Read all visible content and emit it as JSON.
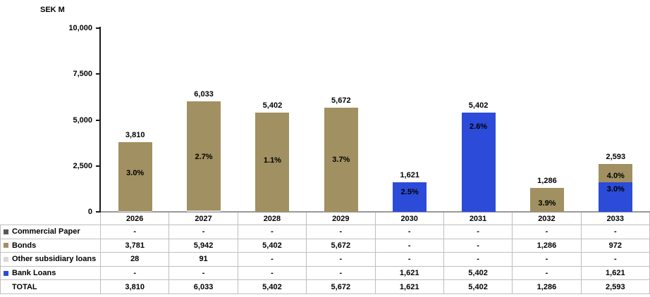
{
  "chart_data": {
    "type": "bar",
    "stacked": true,
    "title": "",
    "ylabel": "SEK M",
    "xlabel": "",
    "ylim": [
      0,
      10000
    ],
    "grid": false,
    "legend_position": "table-left",
    "yticks": [
      {
        "label": "0",
        "value": 0
      },
      {
        "label": "2,500",
        "value": 2500
      },
      {
        "label": "5,000",
        "value": 5000
      },
      {
        "label": "7,500",
        "value": 7500
      },
      {
        "label": "10,000",
        "value": 10000
      }
    ],
    "categories": [
      "2026",
      "2027",
      "2028",
      "2029",
      "2030",
      "2031",
      "2032",
      "2033"
    ],
    "series": [
      {
        "name": "Commercial Paper",
        "color": "#595959",
        "values": [
          0,
          0,
          0,
          0,
          0,
          0,
          0,
          0
        ]
      },
      {
        "name": "Bonds",
        "color": "#A19061",
        "values": [
          3781,
          5942,
          5402,
          5672,
          0,
          0,
          1286,
          972
        ]
      },
      {
        "name": "Other subsidiary loans",
        "color": "#D9D9D9",
        "values": [
          28,
          91,
          0,
          0,
          0,
          0,
          0,
          0
        ]
      },
      {
        "name": "Bank Loans",
        "color": "#2B4BD8",
        "values": [
          0,
          0,
          0,
          0,
          1621,
          5402,
          0,
          1621
        ]
      }
    ],
    "stack_order_bottom_to_top": [
      "Bank Loans",
      "Other subsidiary loans",
      "Bonds",
      "Commercial Paper"
    ],
    "totals": [
      3810,
      6033,
      5402,
      5672,
      1621,
      5402,
      1286,
      2593
    ],
    "total_labels": [
      "3,810",
      "6,033",
      "5,402",
      "5,672",
      "1,621",
      "5,402",
      "1,286",
      "2,593"
    ],
    "annotations": [
      [
        {
          "text": "3.0%",
          "at": 2100
        }
      ],
      [
        {
          "text": "2.7%",
          "at": 3000
        }
      ],
      [
        {
          "text": "1.1%",
          "at": 2790
        }
      ],
      [
        {
          "text": "3.7%",
          "at": 2820
        }
      ],
      [
        {
          "text": "2.5%",
          "at": 1070
        }
      ],
      [
        {
          "text": "2.6%",
          "at": 4650
        }
      ],
      [
        {
          "text": "3.9%",
          "at": 460
        }
      ],
      [
        {
          "text": "4.0%",
          "at": 1950
        },
        {
          "text": "3.0%",
          "at": 1220
        }
      ]
    ]
  },
  "table": {
    "columns": [
      "2026",
      "2027",
      "2028",
      "2029",
      "2030",
      "2031",
      "2032",
      "2033"
    ],
    "rows": [
      {
        "label": "Commercial Paper",
        "marker_color": "#595959",
        "values": [
          "-",
          "-",
          "-",
          "-",
          "-",
          "-",
          "-",
          "-"
        ]
      },
      {
        "label": "Bonds",
        "marker_color": "#A19061",
        "values": [
          "3,781",
          "5,942",
          "5,402",
          "5,672",
          "-",
          "-",
          "1,286",
          "972"
        ]
      },
      {
        "label": "Other subsidiary loans",
        "marker_color": "#D9D9D9",
        "values": [
          "28",
          "91",
          "-",
          "-",
          "-",
          "-",
          "-",
          "-"
        ]
      },
      {
        "label": "Bank Loans",
        "marker_color": "#2B4BD8",
        "values": [
          "-",
          "-",
          "-",
          "-",
          "1,621",
          "5,402",
          "-",
          "1,621"
        ]
      },
      {
        "label": "TOTAL",
        "marker_color": null,
        "values": [
          "3,810",
          "6,033",
          "5,402",
          "5,672",
          "1,621",
          "5,402",
          "1,286",
          "2,593"
        ]
      }
    ]
  },
  "colors": {
    "axis": "#1A1A1A",
    "baseline": "#999999",
    "table_border": "#BFBFBF",
    "text": "#000000",
    "background": "#FFFFFF"
  }
}
